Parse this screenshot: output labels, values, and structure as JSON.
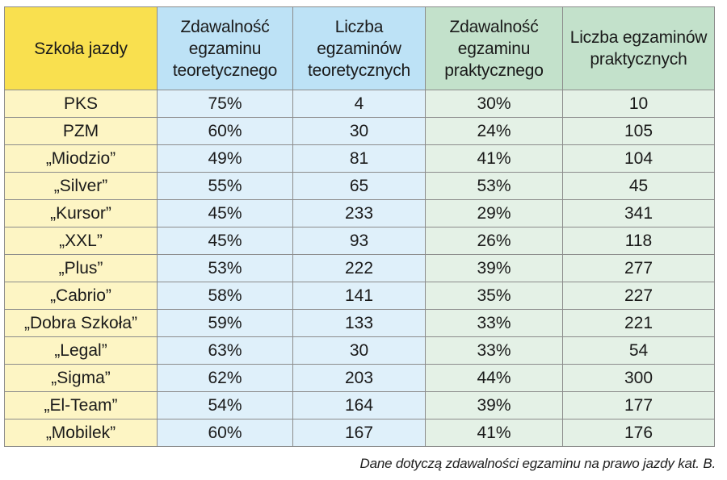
{
  "colors": {
    "school_header": "#f9e04f",
    "school_cell": "#fdf5c4",
    "theory_header": "#bde2f6",
    "theory_cell": "#dff0fa",
    "practice_header": "#c3e1cb",
    "practice_cell": "#e4f1e6",
    "border": "#8c8c8c"
  },
  "chart_data": {
    "type": "table",
    "columns": [
      "Szkoła jazdy",
      "Zdawalność egzaminu teoretycznego",
      "Liczba egzaminów teoretycznych",
      "Zdawalność egzaminu praktycznego",
      "Liczba egzaminów praktycznych"
    ],
    "rows": [
      [
        "PKS",
        "75%",
        "4",
        "30%",
        "10"
      ],
      [
        "PZM",
        "60%",
        "30",
        "24%",
        "105"
      ],
      [
        "„Miodzio”",
        "49%",
        "81",
        "41%",
        "104"
      ],
      [
        "„Silver”",
        "55%",
        "65",
        "53%",
        "45"
      ],
      [
        "„Kursor”",
        "45%",
        "233",
        "29%",
        "341"
      ],
      [
        "„XXL”",
        "45%",
        "93",
        "26%",
        "118"
      ],
      [
        "„Plus”",
        "53%",
        "222",
        "39%",
        "277"
      ],
      [
        "„Cabrio”",
        "58%",
        "141",
        "35%",
        "227"
      ],
      [
        "„Dobra Szkoła”",
        "59%",
        "133",
        "33%",
        "221"
      ],
      [
        "„Legal”",
        "63%",
        "30",
        "33%",
        "54"
      ],
      [
        "„Sigma”",
        "62%",
        "203",
        "44%",
        "300"
      ],
      [
        "„El-Team”",
        "54%",
        "164",
        "39%",
        "177"
      ],
      [
        "„Mobilek”",
        "60%",
        "167",
        "41%",
        "176"
      ]
    ],
    "note": "Dane dotyczą zdawalności egzaminu na prawo jazdy kat. B."
  }
}
